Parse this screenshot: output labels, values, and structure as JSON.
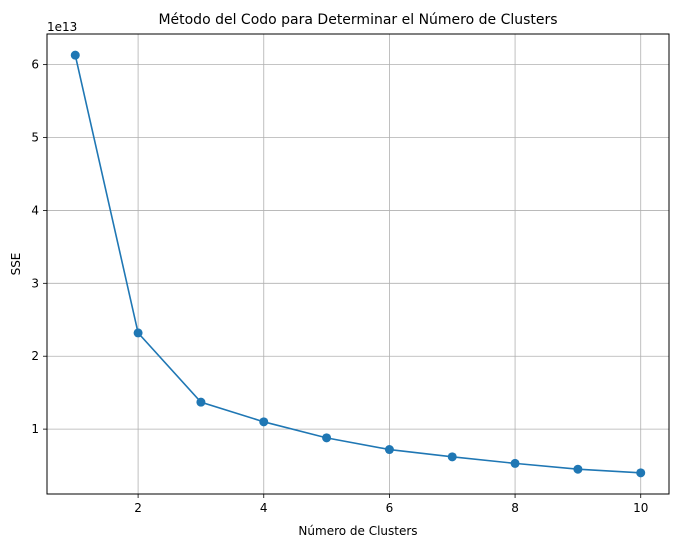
{
  "chart_data": {
    "type": "line",
    "title": "Método del Codo para Determinar el Número de Clusters",
    "xlabel": "Número de Clusters",
    "ylabel": "SSE",
    "y_scale_label": "1e13",
    "x": [
      1,
      2,
      3,
      4,
      5,
      6,
      7,
      8,
      9,
      10
    ],
    "series": [
      {
        "values": [
          6.13,
          2.32,
          1.37,
          1.1,
          0.88,
          0.72,
          0.62,
          0.53,
          0.45,
          0.4
        ]
      }
    ],
    "xticks": [
      2,
      4,
      6,
      8,
      10
    ],
    "yticks": [
      1,
      2,
      3,
      4,
      5,
      6
    ],
    "xlim": [
      0.55,
      10.45
    ],
    "ylim": [
      0.11,
      6.42
    ],
    "grid": true,
    "color": "#1f77b4"
  }
}
